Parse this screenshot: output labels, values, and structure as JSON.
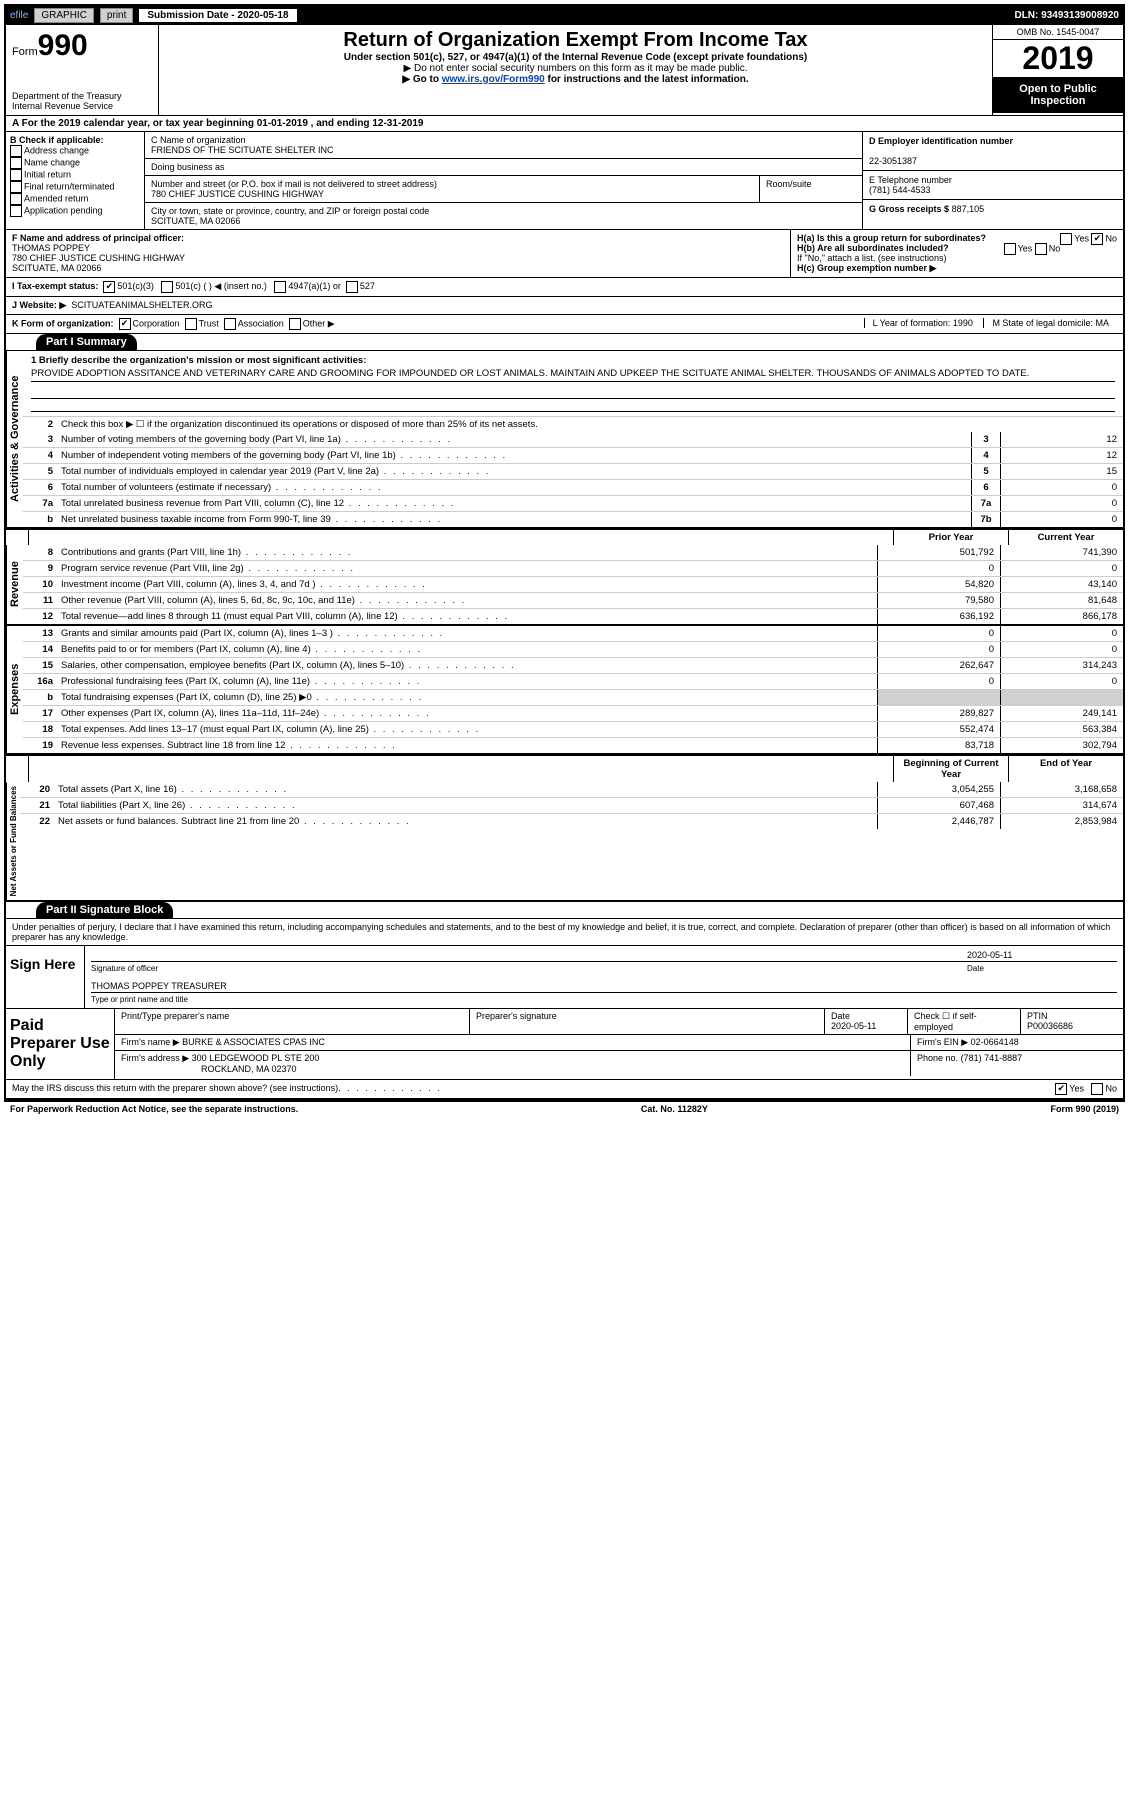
{
  "header_bar": {
    "efile": "efile",
    "graphic": "GRAPHIC",
    "print": "print",
    "submission": "Submission Date - 2020-05-18",
    "dln": "DLN: 93493139008920"
  },
  "title_block": {
    "form_word": "Form",
    "form_number": "990",
    "dept": "Department of the Treasury",
    "irs": "Internal Revenue Service",
    "main_title": "Return of Organization Exempt From Income Tax",
    "sub1": "Under section 501(c), 527, or 4947(a)(1) of the Internal Revenue Code (except private foundations)",
    "sub2": "▶ Do not enter social security numbers on this form as it may be made public.",
    "sub3_pre": "▶ Go to ",
    "sub3_link": "www.irs.gov/Form990",
    "sub3_post": " for instructions and the latest information.",
    "omb": "OMB No. 1545-0047",
    "year": "2019",
    "open_public": "Open to Public Inspection"
  },
  "period": "A For the 2019 calendar year, or tax year beginning 01-01-2019   , and ending 12-31-2019",
  "section_b": {
    "heading": "B Check if applicable:",
    "items": [
      "Address change",
      "Name change",
      "Initial return",
      "Final return/terminated",
      "Amended return",
      "Application pending"
    ]
  },
  "section_c": {
    "name_label": "C Name of organization",
    "name": "FRIENDS OF THE SCITUATE SHELTER INC",
    "dba_label": "Doing business as",
    "addr_label": "Number and street (or P.O. box if mail is not delivered to street address)",
    "room_label": "Room/suite",
    "addr": "780 CHIEF JUSTICE CUSHING HIGHWAY",
    "city_label": "City or town, state or province, country, and ZIP or foreign postal code",
    "city": "SCITUATE, MA  02066"
  },
  "section_d": {
    "ein_label": "D Employer identification number",
    "ein": "22-3051387",
    "tel_label": "E Telephone number",
    "tel": "(781) 544-4533",
    "gross_label": "G Gross receipts $",
    "gross": "887,105"
  },
  "row_f": {
    "label": "F  Name and address of principal officer:",
    "name": "THOMAS POPPEY",
    "addr1": "780 CHIEF JUSTICE CUSHING HIGHWAY",
    "addr2": "SCITUATE, MA  02066"
  },
  "row_h": {
    "ha": "H(a)  Is this a group return for subordinates?",
    "hb": "H(b)  Are all subordinates included?",
    "hb_note": "If \"No,\" attach a list. (see instructions)",
    "hc": "H(c)  Group exemption number ▶",
    "yes": "Yes",
    "no": "No"
  },
  "row_i": {
    "label": "I  Tax-exempt status:",
    "c3": "501(c)(3)",
    "cother": "501(c) (  ) ◀ (insert no.)",
    "a1": "4947(a)(1) or",
    "s527": "527"
  },
  "row_j": {
    "label": "J  Website: ▶",
    "value": "SCITUATEANIMALSHELTER.ORG"
  },
  "row_k": {
    "label": "K Form of organization:",
    "corp": "Corporation",
    "trust": "Trust",
    "assoc": "Association",
    "other": "Other ▶"
  },
  "row_lm": {
    "l": "L Year of formation: 1990",
    "m": "M State of legal domicile: MA"
  },
  "part1": {
    "header": "Part I      Summary",
    "line1_label": "1  Briefly describe the organization's mission or most significant activities:",
    "mission": "PROVIDE ADOPTION ASSITANCE AND VETERINARY CARE AND GROOMING FOR IMPOUNDED OR LOST ANIMALS. MAINTAIN AND UPKEEP THE SCITUATE ANIMAL SHELTER. THOUSANDS OF ANIMALS ADOPTED TO DATE.",
    "line2": "Check this box ▶ ☐  if the organization discontinued its operations or disposed of more than 25% of its net assets.",
    "governance_lines": [
      {
        "n": "3",
        "desc": "Number of voting members of the governing body (Part VI, line 1a)",
        "box": "3",
        "val": "12"
      },
      {
        "n": "4",
        "desc": "Number of independent voting members of the governing body (Part VI, line 1b)",
        "box": "4",
        "val": "12"
      },
      {
        "n": "5",
        "desc": "Total number of individuals employed in calendar year 2019 (Part V, line 2a)",
        "box": "5",
        "val": "15"
      },
      {
        "n": "6",
        "desc": "Total number of volunteers (estimate if necessary)",
        "box": "6",
        "val": "0"
      },
      {
        "n": "7a",
        "desc": "Total unrelated business revenue from Part VIII, column (C), line 12",
        "box": "7a",
        "val": "0"
      },
      {
        "n": "b",
        "desc": "Net unrelated business taxable income from Form 990-T, line 39",
        "box": "7b",
        "val": "0"
      }
    ],
    "prior_year": "Prior Year",
    "current_year": "Current Year",
    "revenue_lines": [
      {
        "n": "8",
        "desc": "Contributions and grants (Part VIII, line 1h)",
        "py": "501,792",
        "cy": "741,390"
      },
      {
        "n": "9",
        "desc": "Program service revenue (Part VIII, line 2g)",
        "py": "0",
        "cy": "0"
      },
      {
        "n": "10",
        "desc": "Investment income (Part VIII, column (A), lines 3, 4, and 7d )",
        "py": "54,820",
        "cy": "43,140"
      },
      {
        "n": "11",
        "desc": "Other revenue (Part VIII, column (A), lines 5, 6d, 8c, 9c, 10c, and 11e)",
        "py": "79,580",
        "cy": "81,648"
      },
      {
        "n": "12",
        "desc": "Total revenue—add lines 8 through 11 (must equal Part VIII, column (A), line 12)",
        "py": "636,192",
        "cy": "866,178"
      }
    ],
    "expense_lines": [
      {
        "n": "13",
        "desc": "Grants and similar amounts paid (Part IX, column (A), lines 1–3 )",
        "py": "0",
        "cy": "0"
      },
      {
        "n": "14",
        "desc": "Benefits paid to or for members (Part IX, column (A), line 4)",
        "py": "0",
        "cy": "0"
      },
      {
        "n": "15",
        "desc": "Salaries, other compensation, employee benefits (Part IX, column (A), lines 5–10)",
        "py": "262,647",
        "cy": "314,243"
      },
      {
        "n": "16a",
        "desc": "Professional fundraising fees (Part IX, column (A), line 11e)",
        "py": "0",
        "cy": "0"
      },
      {
        "n": "b",
        "desc": "Total fundraising expenses (Part IX, column (D), line 25) ▶0",
        "py": "",
        "cy": "",
        "shade": true
      },
      {
        "n": "17",
        "desc": "Other expenses (Part IX, column (A), lines 11a–11d, 11f–24e)",
        "py": "289,827",
        "cy": "249,141"
      },
      {
        "n": "18",
        "desc": "Total expenses. Add lines 13–17 (must equal Part IX, column (A), line 25)",
        "py": "552,474",
        "cy": "563,384"
      },
      {
        "n": "19",
        "desc": "Revenue less expenses. Subtract line 18 from line 12",
        "py": "83,718",
        "cy": "302,794"
      }
    ],
    "begin_year": "Beginning of Current Year",
    "end_year": "End of Year",
    "netasset_lines": [
      {
        "n": "20",
        "desc": "Total assets (Part X, line 16)",
        "py": "3,054,255",
        "cy": "3,168,658"
      },
      {
        "n": "21",
        "desc": "Total liabilities (Part X, line 26)",
        "py": "607,468",
        "cy": "314,674"
      },
      {
        "n": "22",
        "desc": "Net assets or fund balances. Subtract line 21 from line 20",
        "py": "2,446,787",
        "cy": "2,853,984"
      }
    ],
    "side_labels": {
      "gov": "Activities & Governance",
      "rev": "Revenue",
      "exp": "Expenses",
      "net": "Net Assets or Fund Balances"
    }
  },
  "part2": {
    "header": "Part II     Signature Block",
    "declaration": "Under penalties of perjury, I declare that I have examined this return, including accompanying schedules and statements, and to the best of my knowledge and belief, it is true, correct, and complete. Declaration of preparer (other than officer) is based on all information of which preparer has any knowledge.",
    "sign_here": "Sign Here",
    "sig_officer": "Signature of officer",
    "sig_date": "2020-05-11",
    "date_label": "Date",
    "officer_name": "THOMAS POPPEY  TREASURER",
    "type_label": "Type or print name and title",
    "paid_prep": "Paid Preparer Use Only",
    "prep_name_label": "Print/Type preparer's name",
    "prep_sig_label": "Preparer's signature",
    "prep_date_label": "Date",
    "prep_date": "2020-05-11",
    "check_self": "Check ☐ if self-employed",
    "ptin_label": "PTIN",
    "ptin": "P00036686",
    "firm_name_label": "Firm's name    ▶",
    "firm_name": "BURKE & ASSOCIATES CPAS INC",
    "firm_ein_label": "Firm's EIN ▶",
    "firm_ein": "02-0664148",
    "firm_addr_label": "Firm's address ▶",
    "firm_addr1": "300 LEDGEWOOD PL STE 200",
    "firm_addr2": "ROCKLAND, MA  02370",
    "phone_label": "Phone no.",
    "phone": "(781) 741-8887",
    "discuss": "May the IRS discuss this return with the preparer shown above? (see instructions)",
    "yes": "Yes",
    "no": "No"
  },
  "footer": {
    "left": "For Paperwork Reduction Act Notice, see the separate instructions.",
    "mid": "Cat. No. 11282Y",
    "right": "Form 990 (2019)"
  }
}
